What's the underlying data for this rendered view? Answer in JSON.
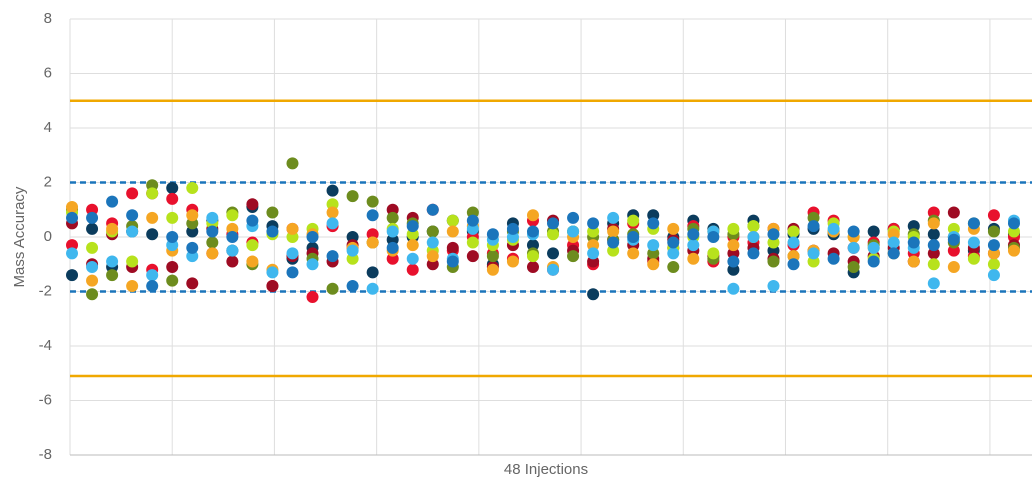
{
  "chart_data": {
    "type": "scatter",
    "y_label": "Mass Accuracy",
    "x_label": "48 Injections",
    "ylim": [
      -8,
      8
    ],
    "yticks": [
      -8,
      -6,
      -4,
      -2,
      0,
      2,
      4,
      6,
      8
    ],
    "xlim": [
      0.5,
      48.5
    ],
    "xgrid": [
      0.5,
      5.6,
      10.7,
      15.8,
      20.9,
      26,
      31.1,
      36.2,
      41.3,
      46.4
    ],
    "grid": true,
    "reference_lines": [
      {
        "value": 5,
        "color": "#f0a800",
        "style": "solid"
      },
      {
        "value": -5.1,
        "color": "#f0a800",
        "style": "solid"
      },
      {
        "value": 2,
        "color": "#1b75bb",
        "style": "dashed"
      },
      {
        "value": -2,
        "color": "#1b75bb",
        "style": "dashed"
      }
    ],
    "x": [
      1,
      2,
      3,
      4,
      5,
      6,
      7,
      8,
      9,
      10,
      11,
      12,
      13,
      14,
      15,
      16,
      17,
      18,
      19,
      20,
      21,
      22,
      23,
      24,
      25,
      26,
      27,
      28,
      29,
      30,
      31,
      32,
      33,
      34,
      35,
      36,
      37,
      38,
      39,
      40,
      41,
      42,
      43,
      44,
      45,
      46,
      47,
      48
    ],
    "series": [
      {
        "color": "#0b3c5d",
        "values": [
          -1.4,
          0.3,
          -1.1,
          0.2,
          0.1,
          1.8,
          0.2,
          0.6,
          -0.5,
          1.1,
          0.4,
          -0.8,
          -0.4,
          1.7,
          0.0,
          -1.3,
          -0.1,
          0.0,
          0.2,
          0.6,
          0.2,
          -1.0,
          0.5,
          -0.3,
          -0.6,
          0.2,
          -2.1,
          0.5,
          0.8,
          0.8,
          0.0,
          0.6,
          0.3,
          -1.2,
          0.6,
          -0.5,
          0.1,
          0.3,
          0.1,
          -1.3,
          0.2,
          0.3,
          0.4,
          0.1,
          0.0,
          -0.5,
          0.3,
          0.1
        ]
      },
      {
        "color": "#e8112d",
        "values": [
          -0.3,
          1.0,
          0.5,
          1.6,
          -1.2,
          1.4,
          1.0,
          -0.6,
          0.1,
          -0.2,
          -1.8,
          0.3,
          -2.2,
          0.4,
          -0.4,
          0.1,
          -0.8,
          -1.2,
          1.0,
          -0.5,
          0.0,
          -0.6,
          -0.8,
          0.6,
          -1.2,
          -0.3,
          -1.0,
          -0.1,
          0.5,
          -0.9,
          -0.4,
          0.4,
          -0.9,
          0.0,
          -0.2,
          0.3,
          -0.3,
          0.9,
          0.6,
          -0.4,
          -0.2,
          0.3,
          -0.6,
          0.9,
          -0.5,
          -0.7,
          0.8,
          0.0
        ]
      },
      {
        "color": "#9e0b23",
        "values": [
          0.5,
          -1.0,
          0.1,
          -1.1,
          1.6,
          -1.1,
          -1.7,
          0.3,
          -0.9,
          1.2,
          -1.8,
          -0.7,
          -0.6,
          -0.9,
          -0.3,
          -0.2,
          1.0,
          0.7,
          -1.0,
          -0.4,
          -0.7,
          -1.1,
          -0.3,
          -1.1,
          0.6,
          -0.5,
          -0.9,
          0.3,
          -0.3,
          -0.8,
          -0.1,
          -0.5,
          -0.7,
          -0.6,
          -0.4,
          -0.8,
          0.3,
          -0.5,
          -0.6,
          -0.9,
          -0.7,
          -0.4,
          -0.9,
          -0.6,
          0.9,
          -0.4,
          -0.6,
          -0.3
        ]
      },
      {
        "color": "#6d8c1e",
        "values": [
          1.0,
          -2.1,
          -1.4,
          0.4,
          1.9,
          -1.6,
          0.5,
          -0.2,
          0.9,
          -1.0,
          0.9,
          2.7,
          -0.8,
          -1.9,
          1.5,
          1.3,
          0.7,
          0.5,
          0.2,
          -1.1,
          0.9,
          -0.7,
          0.2,
          -0.6,
          0.2,
          -0.7,
          0.0,
          -0.1,
          0.1,
          -0.6,
          -1.1,
          0.3,
          -0.8,
          0.1,
          0.4,
          -0.9,
          -0.7,
          0.7,
          0.2,
          -1.1,
          -0.3,
          -0.6,
          0.1,
          0.6,
          -0.2,
          0.5,
          0.2,
          -0.4
        ]
      },
      {
        "color": "#b7e21c",
        "values": [
          0.9,
          -0.4,
          0.2,
          -0.9,
          1.6,
          0.7,
          1.8,
          0.5,
          0.8,
          -0.3,
          0.1,
          0.0,
          0.3,
          1.2,
          -0.8,
          -0.2,
          0.3,
          0.1,
          -0.5,
          0.6,
          -0.2,
          -0.3,
          -0.1,
          -0.7,
          0.1,
          0.2,
          0.2,
          -0.5,
          0.6,
          0.3,
          -0.4,
          0.0,
          -0.6,
          0.3,
          0.4,
          -0.2,
          0.2,
          -0.9,
          0.5,
          0.0,
          -0.8,
          0.2,
          0.0,
          -1.0,
          0.3,
          -0.8,
          -1.0,
          0.2
        ]
      },
      {
        "color": "#f5a623",
        "values": [
          1.1,
          -1.6,
          0.3,
          -1.8,
          0.7,
          -0.5,
          0.8,
          -0.6,
          0.3,
          -0.9,
          -1.2,
          0.3,
          0.1,
          0.9,
          -0.4,
          -0.2,
          -0.5,
          -0.3,
          -0.7,
          0.2,
          0.4,
          -1.2,
          -0.9,
          0.8,
          -1.1,
          0.0,
          -0.3,
          0.2,
          -0.6,
          -1.0,
          0.3,
          -0.8,
          0.2,
          -0.3,
          0.0,
          0.3,
          -0.7,
          -0.5,
          0.2,
          0.0,
          -0.4,
          0.1,
          -0.9,
          0.5,
          -1.1,
          0.3,
          -0.6,
          -0.5
        ]
      },
      {
        "color": "#3fb7ee",
        "values": [
          -0.6,
          -1.1,
          -0.9,
          0.2,
          -1.4,
          -0.3,
          -0.7,
          0.7,
          -0.5,
          0.4,
          -1.3,
          -0.6,
          -1.0,
          0.5,
          -0.5,
          -1.9,
          0.2,
          -0.8,
          -0.2,
          -0.8,
          0.3,
          -0.1,
          0.0,
          0.1,
          -1.2,
          0.2,
          -0.6,
          0.7,
          -0.1,
          -0.3,
          -0.6,
          -0.3,
          0.2,
          -1.9,
          0.0,
          -1.8,
          -0.2,
          -0.6,
          0.3,
          -0.4,
          -0.4,
          -0.2,
          -0.4,
          -1.7,
          0.0,
          -0.2,
          -1.4,
          0.6
        ]
      },
      {
        "color": "#1b75bb",
        "values": [
          0.7,
          0.7,
          1.3,
          0.8,
          -1.8,
          0.0,
          -0.4,
          0.2,
          0.0,
          0.6,
          0.2,
          -1.3,
          0.0,
          -0.7,
          -1.8,
          0.8,
          -0.4,
          0.4,
          1.0,
          -0.9,
          0.6,
          0.1,
          0.3,
          0.2,
          0.5,
          0.7,
          0.5,
          -0.2,
          0.0,
          0.5,
          -0.2,
          0.1,
          0.0,
          -0.9,
          -0.6,
          0.1,
          -1.0,
          0.4,
          -0.8,
          0.2,
          -0.9,
          -0.6,
          -0.2,
          -0.3,
          -0.1,
          0.5,
          -0.3,
          0.5
        ]
      }
    ]
  }
}
